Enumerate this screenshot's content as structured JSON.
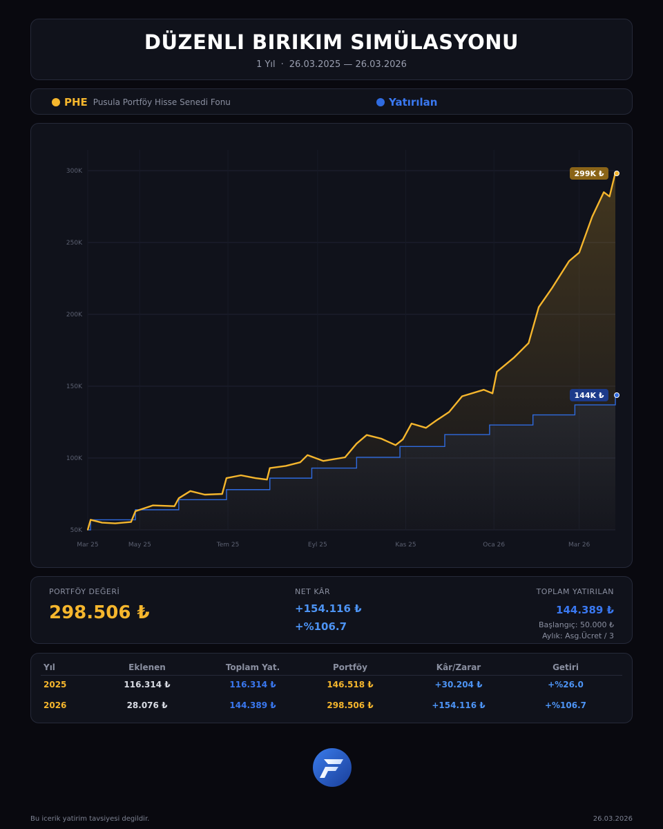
{
  "header": {
    "title": "DÜZENLI BIRIKIM SIMÜLASYONU",
    "period": "1 Yıl",
    "separator": "·",
    "date_range": "26.03.2025 — 26.03.2026"
  },
  "legend": {
    "fund_code": "PHE",
    "fund_name": "Pusula Portföy Hisse Senedi Fonu",
    "invested_label": "Yatırılan"
  },
  "colors": {
    "fund": "#f5b62d",
    "invested": "#2f6be0",
    "background": "#09090f",
    "panel": "#10121b"
  },
  "chart_data": {
    "type": "line",
    "title": "",
    "xlabel": "",
    "ylabel": "",
    "ylim": [
      50000,
      300000
    ],
    "xlim": [
      "2025-03-26",
      "2026-03-26"
    ],
    "grid": true,
    "legend_placement": "top",
    "y_ticks": [
      {
        "v": 50000,
        "label": "50K"
      },
      {
        "v": 100000,
        "label": "100K"
      },
      {
        "v": 150000,
        "label": "150K"
      },
      {
        "v": 200000,
        "label": "200K"
      },
      {
        "v": 250000,
        "label": "250K"
      },
      {
        "v": 300000,
        "label": "300K"
      }
    ],
    "x_ticks": [
      {
        "d": "2025-03-26",
        "label": "Mar 25"
      },
      {
        "d": "2025-05-01",
        "label": "May 25"
      },
      {
        "d": "2025-07-01",
        "label": "Tem 25"
      },
      {
        "d": "2025-09-01",
        "label": "Eyl 25"
      },
      {
        "d": "2025-11-01",
        "label": "Kas 25"
      },
      {
        "d": "2026-01-01",
        "label": "Oca 26"
      },
      {
        "d": "2026-03-01",
        "label": "Mar 26"
      }
    ],
    "series": [
      {
        "name": "PHE",
        "end_label": "299K ₺",
        "points": [
          [
            "2025-03-26",
            50000
          ],
          [
            "2025-03-28",
            57000
          ],
          [
            "2025-04-05",
            55000
          ],
          [
            "2025-04-14",
            54500
          ],
          [
            "2025-04-25",
            55500
          ],
          [
            "2025-04-28",
            63000
          ],
          [
            "2025-05-10",
            67000
          ],
          [
            "2025-05-25",
            66500
          ],
          [
            "2025-05-28",
            72000
          ],
          [
            "2025-06-05",
            77000
          ],
          [
            "2025-06-15",
            74500
          ],
          [
            "2025-06-27",
            75000
          ],
          [
            "2025-06-30",
            86000
          ],
          [
            "2025-07-10",
            88000
          ],
          [
            "2025-07-20",
            86000
          ],
          [
            "2025-07-28",
            85000
          ],
          [
            "2025-07-30",
            93000
          ],
          [
            "2025-08-10",
            94500
          ],
          [
            "2025-08-20",
            97000
          ],
          [
            "2025-08-25",
            102000
          ],
          [
            "2025-09-05",
            98000
          ],
          [
            "2025-09-20",
            100500
          ],
          [
            "2025-09-28",
            110000
          ],
          [
            "2025-10-05",
            116000
          ],
          [
            "2025-10-15",
            113500
          ],
          [
            "2025-10-25",
            109000
          ],
          [
            "2025-10-30",
            113000
          ],
          [
            "2025-11-05",
            124000
          ],
          [
            "2025-11-15",
            121000
          ],
          [
            "2025-11-22",
            126000
          ],
          [
            "2025-12-01",
            132000
          ],
          [
            "2025-12-10",
            143000
          ],
          [
            "2025-12-25",
            147500
          ],
          [
            "2025-12-31",
            145000
          ],
          [
            "2026-01-03",
            160000
          ],
          [
            "2026-01-15",
            170000
          ],
          [
            "2026-01-25",
            180000
          ],
          [
            "2026-02-01",
            205000
          ],
          [
            "2026-02-10",
            218000
          ],
          [
            "2026-02-22",
            237000
          ],
          [
            "2026-03-01",
            243000
          ],
          [
            "2026-03-10",
            268000
          ],
          [
            "2026-03-18",
            285000
          ],
          [
            "2026-03-22",
            282000
          ],
          [
            "2026-03-26",
            298506
          ]
        ]
      },
      {
        "name": "Yatırılan",
        "end_label": "144K ₺",
        "steps": [
          [
            "2025-03-26",
            50000
          ],
          [
            "2025-03-28",
            57000
          ],
          [
            "2025-04-28",
            64000
          ],
          [
            "2025-05-28",
            71000
          ],
          [
            "2025-06-30",
            78000
          ],
          [
            "2025-07-30",
            86000
          ],
          [
            "2025-08-28",
            93000
          ],
          [
            "2025-09-28",
            100500
          ],
          [
            "2025-10-28",
            108000
          ],
          [
            "2025-11-28",
            116314
          ],
          [
            "2025-12-29",
            123000
          ],
          [
            "2026-01-28",
            130000
          ],
          [
            "2026-02-26",
            137000
          ],
          [
            "2026-03-26",
            144389
          ]
        ]
      }
    ]
  },
  "stats": {
    "portfolio_label": "PORTFÖY DEĞERİ",
    "portfolio_value": "298.506 ₺",
    "profit_label": "NET KÂR",
    "profit_value": "+154.116 ₺",
    "profit_pct": "+%106.7",
    "invested_label": "TOPLAM YATIRILAN",
    "invested_value": "144.389 ₺",
    "initial": "Başlangıç: 50.000 ₺",
    "monthly": "Aylık: Asg.Ücret / 3"
  },
  "table": {
    "headers": [
      "Yıl",
      "Eklenen",
      "Toplam Yat.",
      "Portföy",
      "Kâr/Zarar",
      "Getiri"
    ],
    "rows": [
      [
        "2025",
        "116.314 ₺",
        "116.314 ₺",
        "146.518 ₺",
        "+30.204 ₺",
        "+%26.0"
      ],
      [
        "2026",
        "28.076 ₺",
        "144.389 ₺",
        "298.506 ₺",
        "+154.116 ₺",
        "+%106.7"
      ]
    ]
  },
  "footer": {
    "disclaimer": "Bu icerik yatirim tavsiyesi degildir.",
    "date": "26.03.2026"
  },
  "logo": {
    "icon": "stylized-f-logo-icon"
  }
}
